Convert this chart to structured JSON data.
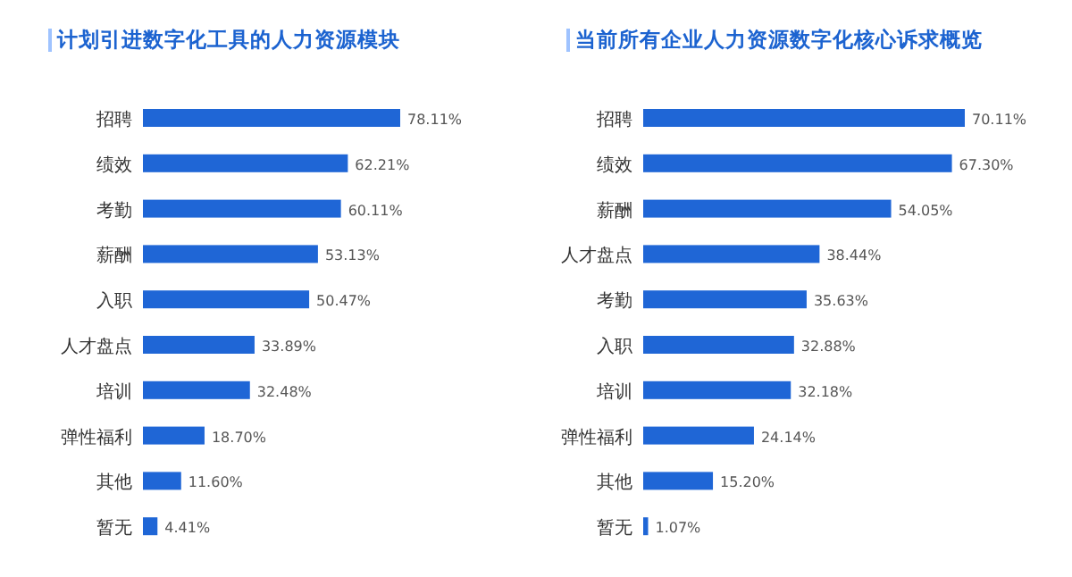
{
  "chart_data": [
    {
      "type": "bar",
      "orientation": "horizontal",
      "title": "计划引进数字化工具的人力资源模块",
      "color": "#1f66d6",
      "categories": [
        "招聘",
        "绩效",
        "考勤",
        "薪酬",
        "入职",
        "人才盘点",
        "培训",
        "弹性福利",
        "其他",
        "暂无"
      ],
      "values": [
        78.11,
        62.21,
        60.11,
        53.13,
        50.47,
        33.89,
        32.48,
        18.7,
        11.6,
        4.41
      ],
      "value_labels": [
        "78.11%",
        "62.21%",
        "60.11%",
        "53.13%",
        "50.47%",
        "33.89%",
        "32.48%",
        "18.70%",
        "11.60%",
        "4.41%"
      ]
    },
    {
      "type": "bar",
      "orientation": "horizontal",
      "title": "当前所有企业人力资源数字化核心诉求概览",
      "color": "#1f66d6",
      "categories": [
        "招聘",
        "绩效",
        "薪酬",
        "人才盘点",
        "考勤",
        "入职",
        "培训",
        "弹性福利",
        "其他",
        "暂无"
      ],
      "values": [
        70.11,
        67.3,
        54.05,
        38.44,
        35.63,
        32.88,
        32.18,
        24.14,
        15.2,
        1.07
      ],
      "value_labels": [
        "70.11%",
        "67.30%",
        "54.05%",
        "38.44%",
        "35.63%",
        "32.88%",
        "32.18%",
        "24.14%",
        "15.20%",
        "1.07%"
      ]
    }
  ]
}
